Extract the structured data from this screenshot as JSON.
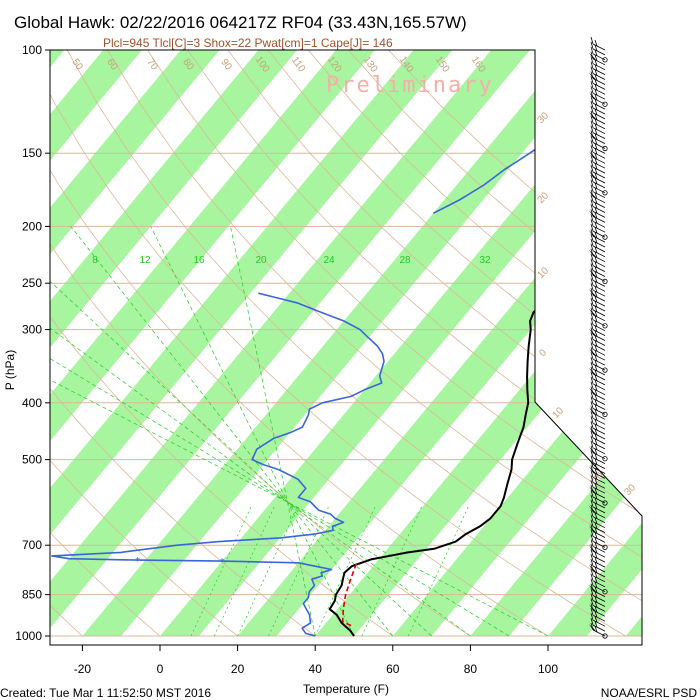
{
  "header": {
    "title": "Global Hawk: 02/22/2016 064217Z RF04 (33.43N,165.57W)",
    "subtitle": "Plcl=945 Tlcl[C]=3 Shox=22 Pwat[cm]=1 Cape[J]= 146",
    "watermark": "Preliminary"
  },
  "footer": {
    "created": "Created: Tue Mar  1 11:52:50 MST 2016",
    "credit": "NOAA/ESRL PSD"
  },
  "colors": {
    "temperature": "#000000",
    "dewpoint": "#3a66d8",
    "parcel": "#dd0000",
    "isotherm_band": "#a8f5a0",
    "isobar": "#dcb898",
    "mixing_ratio": "#22cc22",
    "wind": "#000000"
  },
  "chart_data": {
    "type": "line",
    "title": "Global Hawk: 02/22/2016 064217Z RF04 (33.43N,165.57W)",
    "xlabel": "Temperature (F)",
    "ylabel": "P (hPa)",
    "y_scale": "log",
    "y_reversed": true,
    "ylim": [
      1000,
      100
    ],
    "xlim": [
      -30,
      110
    ],
    "yticks": [
      100,
      150,
      200,
      250,
      300,
      400,
      500,
      700,
      850,
      1000
    ],
    "ytick_labels": [
      "100",
      "150",
      "200",
      "250",
      "300",
      "400",
      "500",
      "700",
      "850",
      "1000"
    ],
    "xticks": [
      -20,
      0,
      20,
      40,
      60,
      80,
      100
    ],
    "xtick_labels": [
      "-20",
      "0",
      "20",
      "40",
      "60",
      "80",
      "100"
    ],
    "mixing_ratio_labels": [
      "8",
      "12",
      "16",
      "20",
      "24",
      "28",
      "32"
    ],
    "isotherm_labels": [
      "50",
      "60",
      "70",
      "80",
      "90",
      "100",
      "110",
      "120",
      "130",
      "140",
      "150",
      "160"
    ],
    "theta_labels": [
      "30",
      "20",
      "10",
      "0",
      "10",
      "20",
      "30"
    ],
    "series": [
      {
        "name": "Temperature",
        "points": [
          [
            1000,
            50
          ],
          [
            980,
            48
          ],
          [
            950,
            44
          ],
          [
            920,
            41
          ],
          [
            900,
            38
          ],
          [
            870,
            37.5
          ],
          [
            850,
            36.5
          ],
          [
            820,
            36
          ],
          [
            800,
            35
          ],
          [
            780,
            34
          ],
          [
            760,
            34.5
          ],
          [
            740,
            38
          ],
          [
            720,
            46
          ],
          [
            710,
            52
          ],
          [
            700,
            54
          ],
          [
            690,
            56
          ],
          [
            670,
            57
          ],
          [
            650,
            59
          ],
          [
            630,
            60
          ],
          [
            600,
            60
          ],
          [
            580,
            59
          ],
          [
            550,
            57
          ],
          [
            520,
            55
          ],
          [
            500,
            53
          ],
          [
            470,
            51
          ],
          [
            440,
            49
          ],
          [
            420,
            47
          ],
          [
            400,
            45
          ],
          [
            380,
            42
          ],
          [
            360,
            39
          ],
          [
            340,
            36
          ],
          [
            320,
            33
          ],
          [
            300,
            30
          ],
          [
            290,
            28
          ],
          [
            280,
            27
          ],
          [
            270,
            28
          ],
          [
            260,
            30
          ],
          [
            250,
            31
          ],
          [
            240,
            32
          ],
          [
            230,
            33
          ],
          [
            220,
            35
          ],
          [
            210,
            37
          ],
          [
            200,
            38
          ],
          [
            190,
            40
          ],
          [
            180,
            42
          ],
          [
            170,
            44
          ],
          [
            160,
            46
          ],
          [
            150,
            49
          ],
          [
            140,
            52
          ],
          [
            130,
            57
          ],
          [
            120,
            62
          ],
          [
            110,
            65
          ],
          [
            105,
            66
          ],
          [
            100,
            67
          ]
        ]
      },
      {
        "name": "Dewpoint",
        "points": [
          [
            1000,
            40
          ],
          [
            990,
            37
          ],
          [
            970,
            35
          ],
          [
            950,
            36
          ],
          [
            920,
            34
          ],
          [
            900,
            32
          ],
          [
            880,
            30
          ],
          [
            860,
            30
          ],
          [
            840,
            29
          ],
          [
            820,
            29
          ],
          [
            800,
            27
          ],
          [
            790,
            29
          ],
          [
            780,
            28
          ],
          [
            770,
            30
          ],
          [
            760,
            25
          ],
          [
            750,
            20
          ],
          [
            745,
            0
          ],
          [
            742,
            -22
          ],
          [
            738,
            -40
          ],
          [
            730,
            -45
          ],
          [
            720,
            -28
          ],
          [
            700,
            -15
          ],
          [
            690,
            -5
          ],
          [
            680,
            10
          ],
          [
            670,
            18
          ],
          [
            660,
            22
          ],
          [
            650,
            21
          ],
          [
            640,
            23
          ],
          [
            630,
            20
          ],
          [
            620,
            18
          ],
          [
            610,
            14
          ],
          [
            600,
            12
          ],
          [
            590,
            10
          ],
          [
            580,
            6
          ],
          [
            560,
            6
          ],
          [
            540,
            2
          ],
          [
            520,
            -5
          ],
          [
            510,
            -10
          ],
          [
            500,
            -14
          ],
          [
            480,
            -15
          ],
          [
            460,
            -13
          ],
          [
            450,
            -10
          ],
          [
            440,
            -8
          ],
          [
            420,
            -9
          ],
          [
            410,
            -10
          ],
          [
            400,
            -8
          ],
          [
            390,
            -2
          ],
          [
            380,
            0
          ],
          [
            370,
            3
          ],
          [
            360,
            1
          ],
          [
            350,
            0
          ],
          [
            340,
            -1
          ],
          [
            330,
            -3
          ],
          [
            320,
            -6
          ],
          [
            310,
            -10
          ],
          [
            300,
            -14
          ],
          [
            290,
            -20
          ],
          [
            280,
            -28
          ],
          [
            270,
            -36
          ],
          [
            265,
            -42
          ],
          [
            260,
            -48
          ]
        ]
      },
      {
        "name": "Dewpoint (upper)",
        "points": [
          [
            190,
            -20
          ],
          [
            180,
            -16
          ],
          [
            170,
            -13
          ],
          [
            160,
            -11
          ],
          [
            150,
            -8
          ],
          [
            140,
            -5
          ],
          [
            130,
            -3
          ],
          [
            120,
            0
          ],
          [
            115,
            4
          ],
          [
            110,
            5
          ],
          [
            105,
            8
          ],
          [
            100,
            10
          ]
        ]
      },
      {
        "name": "Parcel",
        "points": [
          [
            960,
            47
          ],
          [
            945,
            44
          ],
          [
            900,
            41.5
          ],
          [
            850,
            39
          ],
          [
            800,
            37
          ],
          [
            750,
            35
          ]
        ]
      }
    ],
    "wind_barbs": {
      "count": 120,
      "pressure_range": [
        1000,
        100
      ],
      "direction_deg": "west-northwest (approx. 290)",
      "speed_range_kt": [
        10,
        35
      ]
    }
  }
}
